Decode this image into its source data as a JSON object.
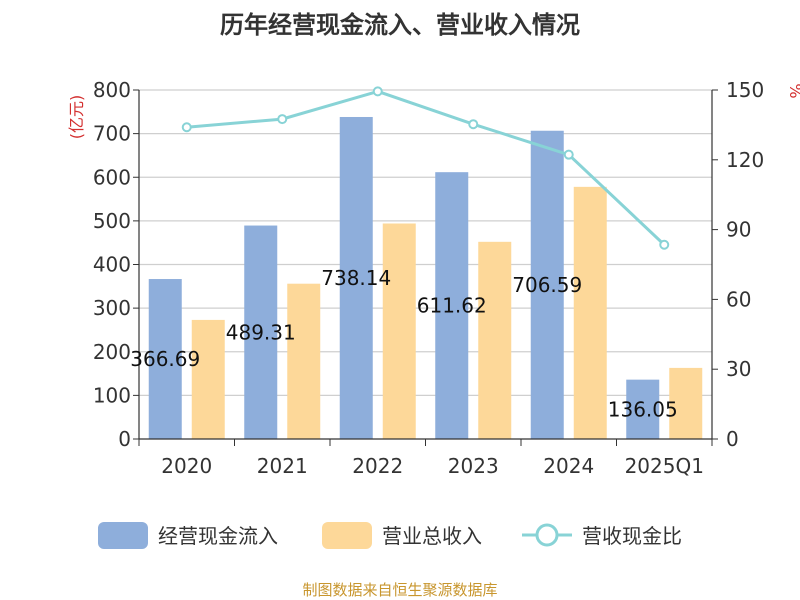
{
  "chart_data": {
    "type": "bar",
    "title": "历年经营现金流入、营业收入情况",
    "categories": [
      "2020",
      "2021",
      "2022",
      "2023",
      "2024",
      "2025Q1"
    ],
    "y_left": {
      "unit": "(亿元)",
      "min": 0,
      "max": 800,
      "ticks": [
        0,
        100,
        200,
        300,
        400,
        500,
        600,
        700,
        800
      ]
    },
    "y_right": {
      "unit": "%",
      "min": 0,
      "max": 150,
      "ticks": [
        0,
        30,
        60,
        90,
        120,
        150
      ]
    },
    "series": [
      {
        "name": "经营现金流入",
        "type": "bar",
        "axis": "left",
        "color": "#8eaedb",
        "values": [
          366.69,
          489.31,
          738.14,
          611.62,
          706.59,
          136.05
        ],
        "labels": [
          "366.69",
          "489.31",
          "738.14",
          "611.62",
          "706.59",
          "136.05"
        ]
      },
      {
        "name": "营业总收入",
        "type": "bar",
        "axis": "left",
        "color": "#fdd899",
        "values": [
          273,
          356,
          494,
          452,
          578,
          163
        ]
      },
      {
        "name": "营收现金比",
        "type": "line",
        "axis": "right",
        "color": "#88d3d6",
        "values": [
          134,
          137.5,
          149.4,
          135.3,
          122.2,
          83.5
        ]
      }
    ],
    "legend_position": "bottom",
    "grid": true
  },
  "source_text": "制图数据来自恒生聚源数据库"
}
